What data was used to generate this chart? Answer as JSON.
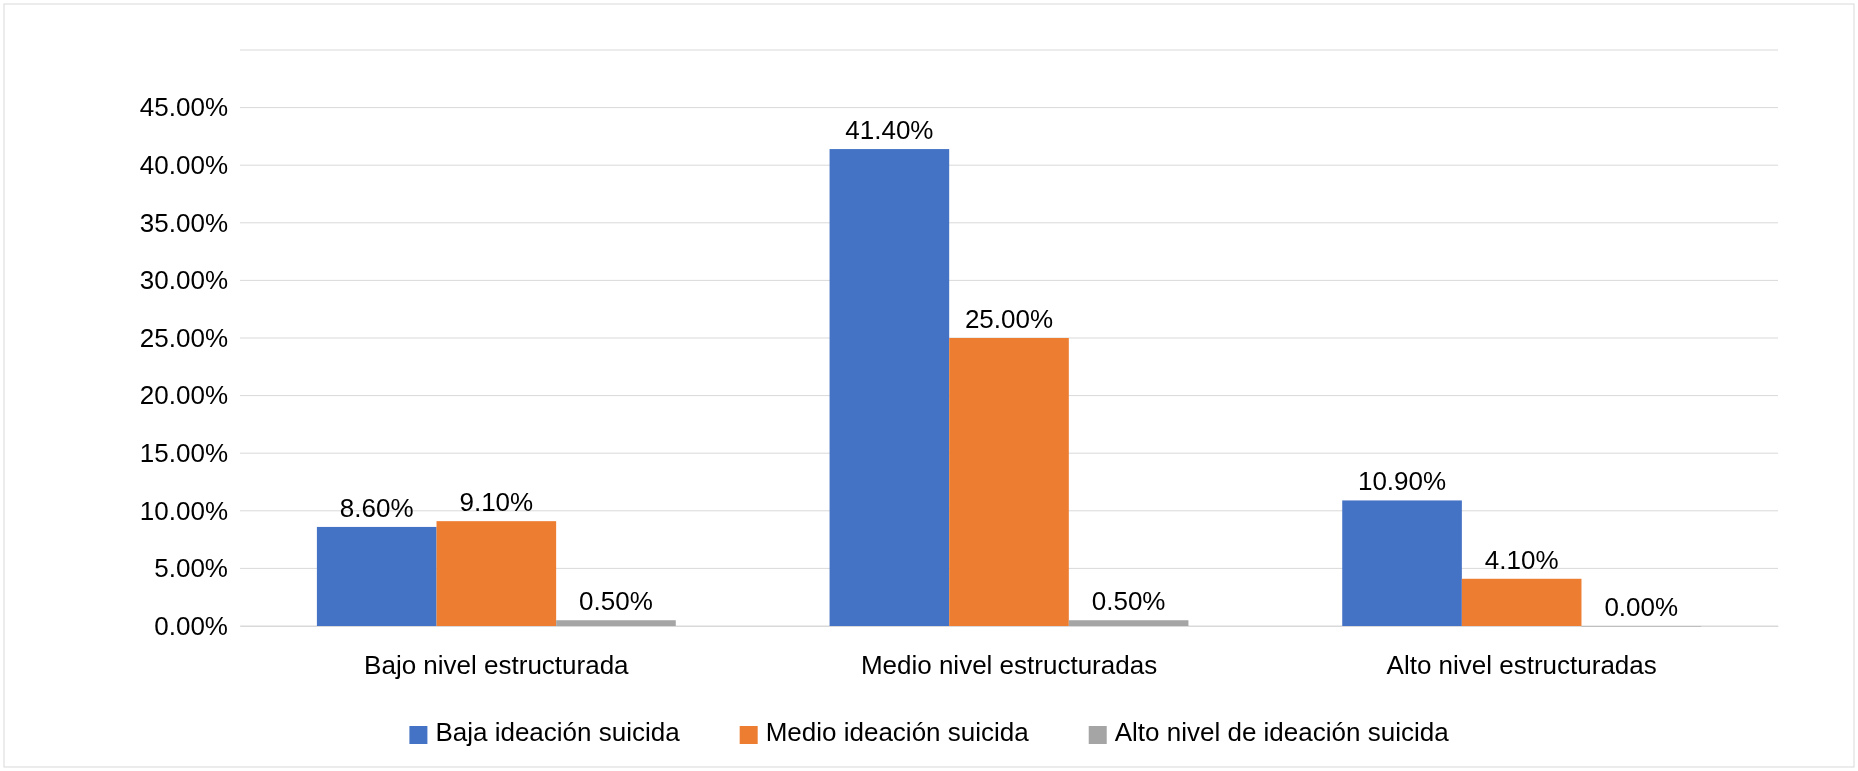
{
  "chart_data": {
    "type": "bar",
    "categories": [
      "Bajo nivel estructurada",
      "Medio nivel estructuradas",
      "Alto nivel estructuradas"
    ],
    "series": [
      {
        "name": "Baja ideación suicida",
        "color": "#4472c4",
        "values": [
          8.6,
          41.4,
          10.9
        ],
        "value_labels": [
          "8.60%",
          "41.40%",
          "10.90%"
        ]
      },
      {
        "name": "Medio ideación suicida",
        "color": "#ed7d31",
        "values": [
          9.1,
          25,
          4.1
        ],
        "value_labels": [
          "9.10%",
          "25.00%",
          "4.10%"
        ]
      },
      {
        "name": "Alto nivel de ideación suicida",
        "color": "#a5a5a5",
        "values": [
          0.5,
          0.5,
          0
        ],
        "value_labels": [
          "0.50%",
          "0.50%",
          "0.00%"
        ]
      }
    ],
    "ylim": [
      0,
      50
    ],
    "yticks": [
      {
        "value": 0,
        "label": "0.00%"
      },
      {
        "value": 5,
        "label": "5.00%"
      },
      {
        "value": 10,
        "label": "10.00%"
      },
      {
        "value": 15,
        "label": "15.00%"
      },
      {
        "value": 20,
        "label": "20.00%"
      },
      {
        "value": 25,
        "label": "25.00%"
      },
      {
        "value": 30,
        "label": "30.00%"
      },
      {
        "value": 35,
        "label": "35.00%"
      },
      {
        "value": 40,
        "label": "40.00%"
      },
      {
        "value": 45,
        "label": "45.00%"
      },
      {
        "value": 50,
        "label": null
      }
    ],
    "grid": "y",
    "legend": "bottom"
  }
}
